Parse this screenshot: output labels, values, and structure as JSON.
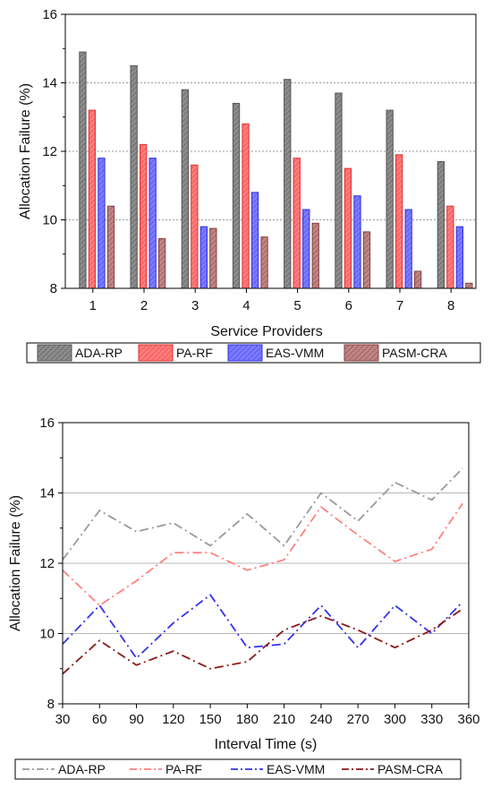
{
  "chart_data": [
    {
      "type": "bar",
      "xlabel": "Service Providers",
      "ylabel": "Allocation Failure (%)",
      "categories": [
        "1",
        "2",
        "3",
        "4",
        "5",
        "6",
        "7",
        "8"
      ],
      "ylim": [
        8,
        16
      ],
      "yticks": [
        "8",
        "10",
        "12",
        "14",
        "16"
      ],
      "grid": "horizontal dotted",
      "legend_position": "bottom",
      "series": [
        {
          "name": "ADA-RP",
          "color": "#888888",
          "values": [
            14.9,
            14.5,
            13.8,
            13.4,
            14.1,
            13.7,
            13.2,
            11.7
          ]
        },
        {
          "name": "PA-RF",
          "color": "#ff6666",
          "values": [
            13.2,
            12.2,
            11.6,
            12.8,
            11.8,
            11.5,
            11.9,
            10.4
          ]
        },
        {
          "name": "EAS-VMM",
          "color": "#6666ff",
          "values": [
            11.8,
            11.8,
            9.8,
            10.8,
            10.3,
            10.7,
            10.3,
            9.8
          ]
        },
        {
          "name": "PASM-CRA",
          "color": "#b07070",
          "values": [
            10.4,
            9.45,
            9.75,
            9.5,
            9.9,
            9.65,
            8.5,
            8.15
          ]
        }
      ]
    },
    {
      "type": "line",
      "xlabel": "Interval Time (s)",
      "ylabel": "Allocation Failure (%)",
      "x": [
        30,
        60,
        90,
        120,
        150,
        180,
        210,
        240,
        270,
        300,
        330,
        355
      ],
      "xticks": [
        "30",
        "60",
        "90",
        "120",
        "150",
        "180",
        "210",
        "240",
        "270",
        "300",
        "330",
        "360"
      ],
      "xlim": [
        30,
        360
      ],
      "ylim": [
        8,
        16
      ],
      "yticks": [
        "8",
        "10",
        "12",
        "14",
        "16"
      ],
      "grid": "horizontal solid",
      "legend_position": "bottom",
      "series": [
        {
          "name": "ADA-RP",
          "color": "#999999",
          "values": [
            12.1,
            13.5,
            12.9,
            13.15,
            12.5,
            13.4,
            12.5,
            14.0,
            13.2,
            14.3,
            13.8,
            14.7
          ]
        },
        {
          "name": "PA-RF",
          "color": "#ff8080",
          "values": [
            11.8,
            10.8,
            11.5,
            12.3,
            12.3,
            11.8,
            12.1,
            13.6,
            12.8,
            12.05,
            12.4,
            13.7
          ]
        },
        {
          "name": "EAS-VMM",
          "color": "#3333ee",
          "values": [
            9.7,
            10.8,
            9.3,
            10.3,
            11.1,
            9.6,
            9.7,
            10.8,
            9.6,
            10.8,
            10.0,
            10.9
          ]
        },
        {
          "name": "PASM-CRA",
          "color": "#8b1a1a",
          "values": [
            8.85,
            9.8,
            9.1,
            9.5,
            9.0,
            9.2,
            10.1,
            10.5,
            10.1,
            9.6,
            10.1,
            10.7
          ]
        }
      ]
    }
  ]
}
